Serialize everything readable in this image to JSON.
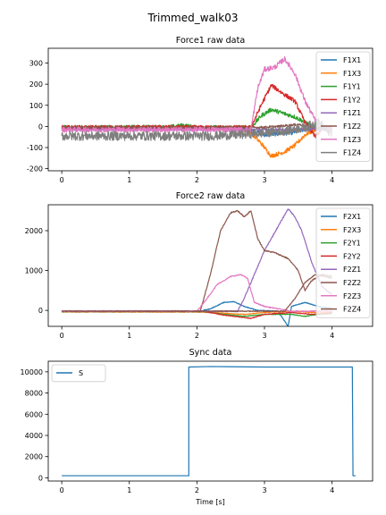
{
  "figure_title": "Trimmed_walk03",
  "colors": {
    "C0": "#1f77b4",
    "C1": "#ff7f0e",
    "C2": "#2ca02c",
    "C3": "#d62728",
    "C4": "#9467bd",
    "C5": "#8c564b",
    "C6": "#e377c2",
    "C7": "#7f7f7f"
  },
  "chart_data": [
    {
      "type": "line",
      "title": "Force1 raw data",
      "xlabel": "",
      "ylabel": "",
      "xlim": [
        -0.2,
        4.6
      ],
      "ylim": [
        -210,
        370
      ],
      "xticks": [
        0,
        1,
        2,
        3,
        4
      ],
      "yticks": [
        -200,
        -100,
        0,
        100,
        200,
        300
      ],
      "legend": "right",
      "series": [
        {
          "name": "F1X1",
          "color": "#1f77b4",
          "noise": 10,
          "points": [
            [
              0,
              -10
            ],
            [
              2.0,
              -10
            ],
            [
              2.2,
              -8
            ],
            [
              2.6,
              -10
            ],
            [
              2.8,
              -15
            ],
            [
              3.0,
              -40
            ],
            [
              3.2,
              -35
            ],
            [
              3.4,
              -30
            ],
            [
              3.6,
              -15
            ],
            [
              3.8,
              -12
            ],
            [
              4.0,
              -12
            ]
          ]
        },
        {
          "name": "F1X3",
          "color": "#ff7f0e",
          "noise": 10,
          "points": [
            [
              0,
              -8
            ],
            [
              2.6,
              -10
            ],
            [
              2.8,
              -30
            ],
            [
              2.95,
              -80
            ],
            [
              3.1,
              -140
            ],
            [
              3.3,
              -120
            ],
            [
              3.45,
              -90
            ],
            [
              3.6,
              -40
            ],
            [
              3.75,
              -15
            ],
            [
              4.0,
              -10
            ]
          ]
        },
        {
          "name": "F1Y1",
          "color": "#2ca02c",
          "noise": 10,
          "points": [
            [
              0,
              -5
            ],
            [
              1.6,
              -3
            ],
            [
              1.8,
              5
            ],
            [
              2.0,
              -5
            ],
            [
              2.8,
              -5
            ],
            [
              2.95,
              50
            ],
            [
              3.1,
              80
            ],
            [
              3.3,
              60
            ],
            [
              3.45,
              45
            ],
            [
              3.6,
              20
            ],
            [
              3.75,
              -10
            ],
            [
              4.0,
              -5
            ]
          ]
        },
        {
          "name": "F1Y2",
          "color": "#d62728",
          "noise": 10,
          "points": [
            [
              0,
              -5
            ],
            [
              2.8,
              -5
            ],
            [
              2.95,
              100
            ],
            [
              3.1,
              195
            ],
            [
              3.3,
              150
            ],
            [
              3.45,
              120
            ],
            [
              3.6,
              20
            ],
            [
              3.75,
              -50
            ],
            [
              3.85,
              -10
            ],
            [
              4.0,
              -5
            ]
          ]
        },
        {
          "name": "F1Z1",
          "color": "#9467bd",
          "noise": 5,
          "points": [
            [
              0,
              -15
            ],
            [
              4.0,
              -15
            ]
          ]
        },
        {
          "name": "F1Z2",
          "color": "#8c564b",
          "noise": 5,
          "points": [
            [
              0,
              -5
            ],
            [
              2.9,
              -5
            ],
            [
              3.2,
              0
            ],
            [
              3.5,
              10
            ],
            [
              3.7,
              -5
            ],
            [
              4.0,
              -5
            ]
          ]
        },
        {
          "name": "F1Z3",
          "color": "#e377c2",
          "noise": 12,
          "points": [
            [
              0,
              -15
            ],
            [
              2.8,
              -15
            ],
            [
              2.9,
              180
            ],
            [
              3.0,
              270
            ],
            [
              3.15,
              280
            ],
            [
              3.3,
              320
            ],
            [
              3.45,
              250
            ],
            [
              3.6,
              120
            ],
            [
              3.75,
              30
            ],
            [
              3.9,
              -10
            ],
            [
              4.0,
              -15
            ]
          ]
        },
        {
          "name": "F1Z4",
          "color": "#7f7f7f",
          "noise": 22,
          "points": [
            [
              0,
              -45
            ],
            [
              2.2,
              -45
            ],
            [
              2.6,
              -40
            ],
            [
              3.0,
              -30
            ],
            [
              3.3,
              -20
            ],
            [
              3.6,
              -5
            ],
            [
              3.8,
              20
            ],
            [
              4.0,
              -40
            ]
          ]
        }
      ]
    },
    {
      "type": "line",
      "title": "Force2 raw data",
      "xlabel": "",
      "ylabel": "",
      "xlim": [
        -0.2,
        4.6
      ],
      "ylim": [
        -400,
        2650
      ],
      "xticks": [
        0,
        1,
        2,
        3,
        4
      ],
      "yticks": [
        0,
        1000,
        2000
      ],
      "legend": "right",
      "series": [
        {
          "name": "F2X1",
          "color": "#1f77b4",
          "noise": 8,
          "points": [
            [
              0,
              -30
            ],
            [
              2.0,
              -30
            ],
            [
              2.2,
              40
            ],
            [
              2.4,
              200
            ],
            [
              2.55,
              220
            ],
            [
              2.7,
              100
            ],
            [
              2.9,
              0
            ],
            [
              3.2,
              -20
            ],
            [
              3.35,
              -400
            ],
            [
              3.4,
              100
            ],
            [
              3.6,
              200
            ],
            [
              3.8,
              100
            ],
            [
              4.0,
              50
            ]
          ]
        },
        {
          "name": "F2X3",
          "color": "#ff7f0e",
          "noise": 8,
          "points": [
            [
              0,
              -40
            ],
            [
              2.0,
              -40
            ],
            [
              2.3,
              -60
            ],
            [
              2.7,
              -100
            ],
            [
              3.0,
              -50
            ],
            [
              3.4,
              -20
            ],
            [
              3.7,
              -50
            ],
            [
              4.0,
              -40
            ]
          ]
        },
        {
          "name": "F2Y1",
          "color": "#2ca02c",
          "noise": 8,
          "points": [
            [
              0,
              -30
            ],
            [
              2.1,
              -30
            ],
            [
              2.4,
              -100
            ],
            [
              2.7,
              -150
            ],
            [
              3.0,
              -100
            ],
            [
              3.4,
              -100
            ],
            [
              3.6,
              -150
            ],
            [
              3.8,
              -100
            ],
            [
              4.0,
              -80
            ]
          ]
        },
        {
          "name": "F2Y2",
          "color": "#d62728",
          "noise": 8,
          "points": [
            [
              0,
              -20
            ],
            [
              2.1,
              -20
            ],
            [
              2.4,
              -120
            ],
            [
              2.8,
              -200
            ],
            [
              3.0,
              -100
            ],
            [
              3.4,
              -50
            ],
            [
              3.7,
              -100
            ],
            [
              4.0,
              -60
            ]
          ]
        },
        {
          "name": "F2Z1",
          "color": "#9467bd",
          "noise": 15,
          "points": [
            [
              0,
              -20
            ],
            [
              2.6,
              -20
            ],
            [
              2.7,
              300
            ],
            [
              2.85,
              900
            ],
            [
              3.0,
              1500
            ],
            [
              3.2,
              2100
            ],
            [
              3.35,
              2550
            ],
            [
              3.45,
              2350
            ],
            [
              3.55,
              2000
            ],
            [
              3.7,
              1200
            ],
            [
              3.85,
              600
            ],
            [
              4.0,
              400
            ]
          ]
        },
        {
          "name": "F2Z2",
          "color": "#8c564b",
          "noise": 15,
          "points": [
            [
              0,
              -20
            ],
            [
              2.05,
              -20
            ],
            [
              2.2,
              900
            ],
            [
              2.35,
              2000
            ],
            [
              2.5,
              2450
            ],
            [
              2.6,
              2500
            ],
            [
              2.7,
              2350
            ],
            [
              2.8,
              2500
            ],
            [
              2.9,
              1800
            ],
            [
              3.0,
              1500
            ],
            [
              3.15,
              1450
            ],
            [
              3.35,
              1300
            ],
            [
              3.5,
              1000
            ],
            [
              3.6,
              500
            ],
            [
              3.7,
              750
            ],
            [
              3.85,
              900
            ],
            [
              4.0,
              850
            ]
          ]
        },
        {
          "name": "F2Z3",
          "color": "#e377c2",
          "noise": 12,
          "points": [
            [
              0,
              -20
            ],
            [
              2.0,
              -20
            ],
            [
              2.15,
              300
            ],
            [
              2.3,
              650
            ],
            [
              2.5,
              850
            ],
            [
              2.65,
              900
            ],
            [
              2.75,
              800
            ],
            [
              2.85,
              200
            ],
            [
              3.0,
              100
            ],
            [
              3.4,
              -20
            ],
            [
              4.0,
              -20
            ]
          ]
        },
        {
          "name": "F2Z4",
          "color": "#8c564b",
          "noise": 12,
          "points": [
            [
              0,
              -20
            ],
            [
              3.3,
              -20
            ],
            [
              3.45,
              300
            ],
            [
              3.6,
              700
            ],
            [
              3.75,
              900
            ],
            [
              3.9,
              850
            ],
            [
              4.0,
              800
            ]
          ]
        }
      ]
    },
    {
      "type": "line",
      "title": "Sync data",
      "xlabel": "Time [s]",
      "ylabel": "",
      "xlim": [
        -0.2,
        4.6
      ],
      "ylim": [
        -300,
        11000
      ],
      "xticks": [
        0,
        1,
        2,
        3,
        4
      ],
      "yticks": [
        0,
        2000,
        4000,
        6000,
        8000,
        10000
      ],
      "legend": "upper-left",
      "series": [
        {
          "name": "S",
          "color": "#1f77b4",
          "noise": 0,
          "points": [
            [
              0,
              200
            ],
            [
              1.88,
              200
            ],
            [
              1.88,
              10450
            ],
            [
              2.2,
              10500
            ],
            [
              3.0,
              10450
            ],
            [
              4.3,
              10450
            ],
            [
              4.31,
              200
            ],
            [
              4.35,
              200
            ]
          ]
        }
      ]
    }
  ]
}
